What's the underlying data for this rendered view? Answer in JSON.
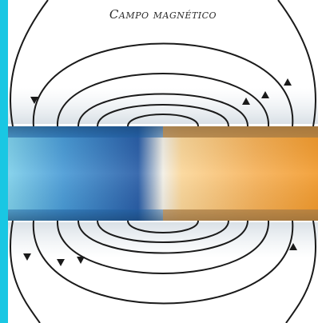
{
  "diagram": {
    "title": "Campo magnético",
    "colors": {
      "frame": "#19c7e3",
      "magnet_blue": "#2f6fb8",
      "magnet_orange": "#f4a13a",
      "field_lines": "#1a1a1a"
    },
    "icons": [
      "field-line-arrow"
    ]
  }
}
